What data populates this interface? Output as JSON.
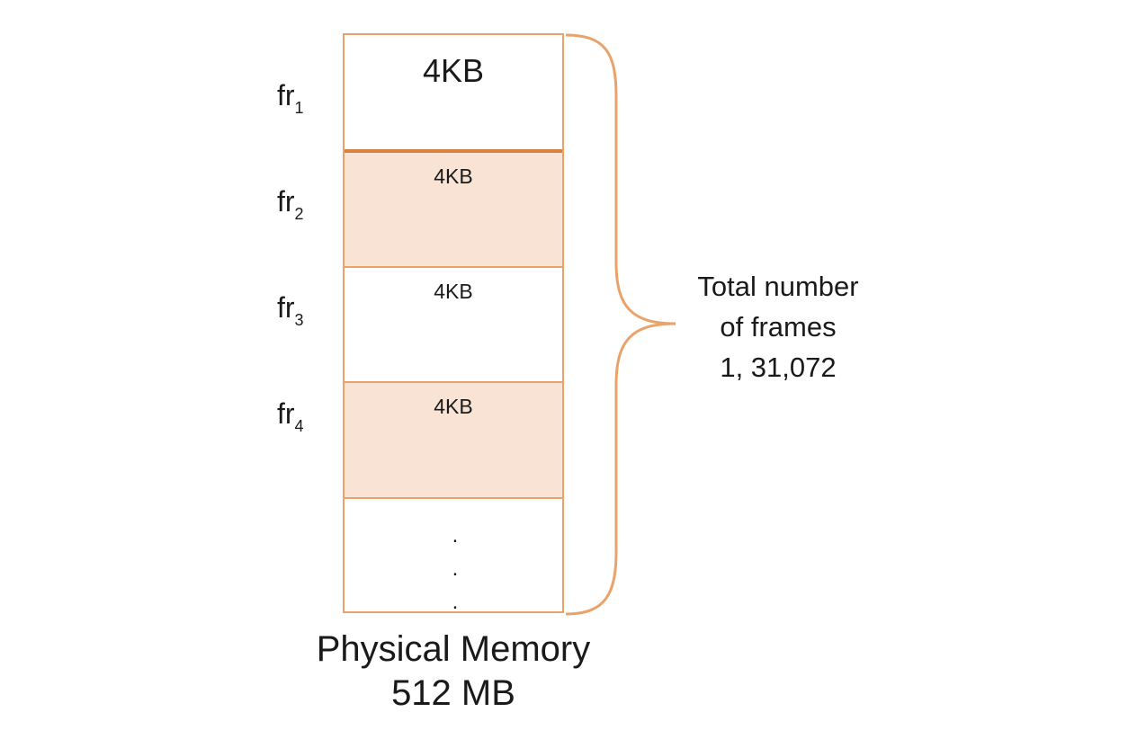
{
  "frames": [
    {
      "prefix": "fr",
      "index": "1",
      "size": "4KB"
    },
    {
      "prefix": "fr",
      "index": "2",
      "size": "4KB"
    },
    {
      "prefix": "fr",
      "index": "3",
      "size": "4KB"
    },
    {
      "prefix": "fr",
      "index": "4",
      "size": "4KB"
    }
  ],
  "continuation": ".",
  "brace_label": {
    "line1": "Total number",
    "line2": "of frames",
    "line3": "1, 31,072"
  },
  "caption": {
    "line1": "Physical Memory",
    "line2": "512 MB"
  },
  "colors": {
    "border": "#e8a26a",
    "frame_divider": "#d9823f",
    "shaded_fill": "#f9e3d5"
  }
}
